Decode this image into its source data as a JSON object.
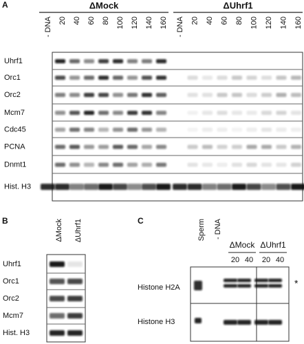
{
  "panel_a": {
    "label": "A",
    "groups": [
      "ΔMock",
      "ΔUhrf1"
    ],
    "lanes": [
      "- DNA",
      20,
      40,
      60,
      80,
      100,
      120,
      140,
      160
    ],
    "rows": [
      "Uhrf1",
      "Orc1",
      "Orc2",
      "Mcm7",
      "Cdc45",
      "PCNA",
      "Dnmt1",
      "Hist. H3"
    ]
  },
  "panel_b": {
    "label": "B",
    "lanes": [
      "ΔMock",
      "ΔUhrf1"
    ],
    "rows": [
      "Uhrf1",
      "Orc1",
      "Orc2",
      "Mcm7",
      "Hist. H3"
    ]
  },
  "panel_c": {
    "label": "C",
    "lanes": [
      "Sperm",
      "- DNA"
    ],
    "groups": [
      "ΔMock",
      "ΔUhrf1"
    ],
    "sub_lanes": [
      20,
      40
    ],
    "rows": [
      "Histone H2A",
      "Histone H3"
    ],
    "annotation": "*"
  }
}
